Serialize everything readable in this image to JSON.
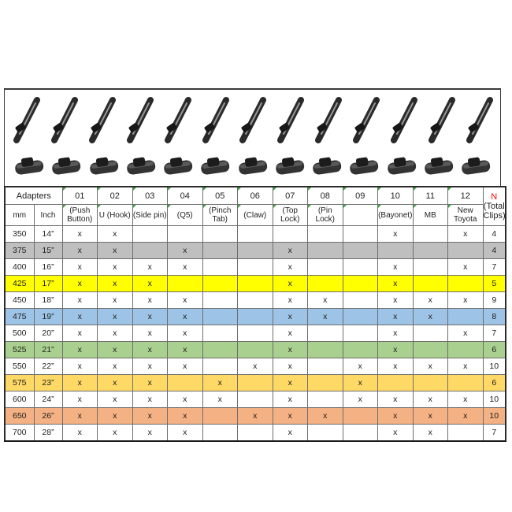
{
  "panel": {
    "blade_icon_count": 13,
    "clip_icon_count": 13,
    "blade_icon_name": "wiper-blade-photo",
    "clip_icon_name": "adapter-clip-photo"
  },
  "table": {
    "adapters_label": "Adapters",
    "subheader": {
      "mm": "mm",
      "inch": "Inch"
    },
    "total_header": {
      "n": "N",
      "rest": " (Total Clips)"
    },
    "mark_char": "x",
    "columns": [
      {
        "id": "01",
        "name": "(Push Button)"
      },
      {
        "id": "02",
        "name": "U (Hook)"
      },
      {
        "id": "03",
        "name": "(Side pin)"
      },
      {
        "id": "04",
        "name": "(Q5)"
      },
      {
        "id": "05",
        "name": "(Pinch Tab)"
      },
      {
        "id": "06",
        "name": "(Claw)"
      },
      {
        "id": "07",
        "name": "(Top Lock)"
      },
      {
        "id": "08",
        "name": "(Pin Lock)"
      },
      {
        "id": "09",
        "name": ""
      },
      {
        "id": "10",
        "name": "(Bayonet)"
      },
      {
        "id": "11",
        "name": "MB"
      },
      {
        "id": "12",
        "name": "New Toyota"
      }
    ],
    "rows": [
      {
        "mm": "350",
        "inch": "14”",
        "marks": [
          "01",
          "02",
          "10",
          "12"
        ],
        "total": "4",
        "highlight": ""
      },
      {
        "mm": "375",
        "inch": "15”",
        "marks": [
          "01",
          "02",
          "04",
          "07"
        ],
        "total": "4",
        "highlight": "#BFBFBF"
      },
      {
        "mm": "400",
        "inch": "16”",
        "marks": [
          "01",
          "02",
          "03",
          "04",
          "07",
          "10",
          "12"
        ],
        "total": "7",
        "highlight": ""
      },
      {
        "mm": "425",
        "inch": "17”",
        "marks": [
          "01",
          "02",
          "03",
          "07",
          "10"
        ],
        "total": "5",
        "highlight": "#FFFF00"
      },
      {
        "mm": "450",
        "inch": "18”",
        "marks": [
          "01",
          "02",
          "03",
          "04",
          "07",
          "08",
          "10",
          "11",
          "12"
        ],
        "total": "9",
        "highlight": ""
      },
      {
        "mm": "475",
        "inch": "19”",
        "marks": [
          "01",
          "02",
          "03",
          "04",
          "07",
          "08",
          "10",
          "11"
        ],
        "total": "8",
        "highlight": "#9DC3E6"
      },
      {
        "mm": "500",
        "inch": "20”",
        "marks": [
          "01",
          "02",
          "03",
          "04",
          "07",
          "10",
          "12"
        ],
        "total": "7",
        "highlight": ""
      },
      {
        "mm": "525",
        "inch": "21”",
        "marks": [
          "01",
          "02",
          "03",
          "04",
          "07",
          "10"
        ],
        "total": "6",
        "highlight": "#A9D08E"
      },
      {
        "mm": "550",
        "inch": "22”",
        "marks": [
          "01",
          "02",
          "03",
          "04",
          "06",
          "07",
          "09",
          "10",
          "11",
          "12"
        ],
        "total": "10",
        "highlight": ""
      },
      {
        "mm": "575",
        "inch": "23”",
        "marks": [
          "01",
          "02",
          "03",
          "05",
          "07",
          "09"
        ],
        "total": "6",
        "highlight": "#FFD966"
      },
      {
        "mm": "600",
        "inch": "24”",
        "marks": [
          "01",
          "02",
          "03",
          "04",
          "05",
          "07",
          "09",
          "10",
          "11",
          "12"
        ],
        "total": "10",
        "highlight": ""
      },
      {
        "mm": "650",
        "inch": "26”",
        "marks": [
          "01",
          "02",
          "03",
          "04",
          "06",
          "07",
          "08",
          "10",
          "11",
          "12"
        ],
        "total": "10",
        "highlight": "#F4B183"
      },
      {
        "mm": "700",
        "inch": "28”",
        "marks": [
          "01",
          "02",
          "03",
          "04",
          "07",
          "10",
          "11"
        ],
        "total": "7",
        "highlight": ""
      }
    ]
  },
  "colors": {
    "flag_green": "#3aa33a",
    "n_red": "#ff0000",
    "row_gray": "#BFBFBF",
    "row_yellow": "#FFFF00",
    "row_blue": "#9DC3E6",
    "row_green": "#A9D08E",
    "row_gold": "#FFD966",
    "row_orange": "#F4B183"
  }
}
